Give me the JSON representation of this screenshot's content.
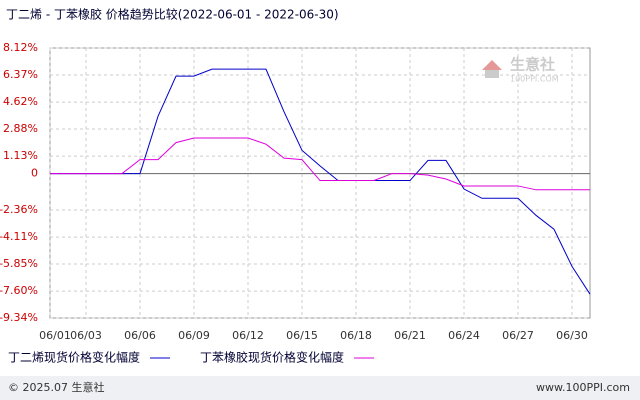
{
  "chart_data": {
    "type": "line",
    "title": "丁二烯 - 丁苯橡胶 价格趋势比较(2022-06-01 - 2022-06-30)",
    "categories": [
      "06/01",
      null,
      "06/03",
      null,
      null,
      "06/06",
      null,
      null,
      "06/09",
      null,
      null,
      "06/12",
      null,
      null,
      "06/15",
      null,
      null,
      "06/18",
      null,
      null,
      "06/21",
      null,
      null,
      "06/24",
      null,
      null,
      "06/27",
      null,
      null,
      "06/30",
      null
    ],
    "series": [
      {
        "name": "丁二烯现货价格变化幅度",
        "color": "#0000cc",
        "values": [
          0,
          0,
          0,
          0,
          0,
          0,
          3.7,
          6.3,
          6.3,
          6.75,
          6.75,
          6.75,
          6.75,
          4.0,
          1.5,
          0.5,
          -0.45,
          -0.45,
          -0.45,
          -0.45,
          -0.45,
          0.85,
          0.85,
          -1.0,
          -1.6,
          -1.6,
          -1.6,
          -2.7,
          -3.6,
          -6.0,
          -7.8
        ]
      },
      {
        "name": "丁苯橡胶现货价格变化幅度",
        "color": "#dd00dd",
        "values": [
          0,
          0,
          0,
          0,
          0,
          0.9,
          0.9,
          2.0,
          2.3,
          2.3,
          2.3,
          2.3,
          1.9,
          1.0,
          0.9,
          -0.45,
          -0.45,
          -0.45,
          -0.45,
          0.0,
          0.0,
          -0.1,
          -0.35,
          -0.8,
          -0.8,
          -0.8,
          -0.8,
          -1.05,
          -1.05,
          -1.05,
          -1.05
        ]
      }
    ],
    "ylim": [
      -9.34,
      8.12
    ],
    "yticks": [
      {
        "value": 8.12,
        "label": "8.12%"
      },
      {
        "value": 6.37,
        "label": "6.37%"
      },
      {
        "value": 4.62,
        "label": "4.62%"
      },
      {
        "value": 2.88,
        "label": "2.88%"
      },
      {
        "value": 1.13,
        "label": "1.13%"
      },
      0,
      {
        "value": -2.36,
        "label": "-2.36%"
      },
      {
        "value": -4.11,
        "label": "-4.11%"
      },
      {
        "value": -5.85,
        "label": "-5.85%"
      },
      {
        "value": -7.6,
        "label": "-7.60%"
      },
      {
        "value": -9.34,
        "label": "-9.34%"
      }
    ],
    "grid": true,
    "watermark": "生意社",
    "watermark_sub": "100PPI.COM",
    "footer_left": "© 2025.07 生意社",
    "footer_right": "www.100PPI.com"
  }
}
